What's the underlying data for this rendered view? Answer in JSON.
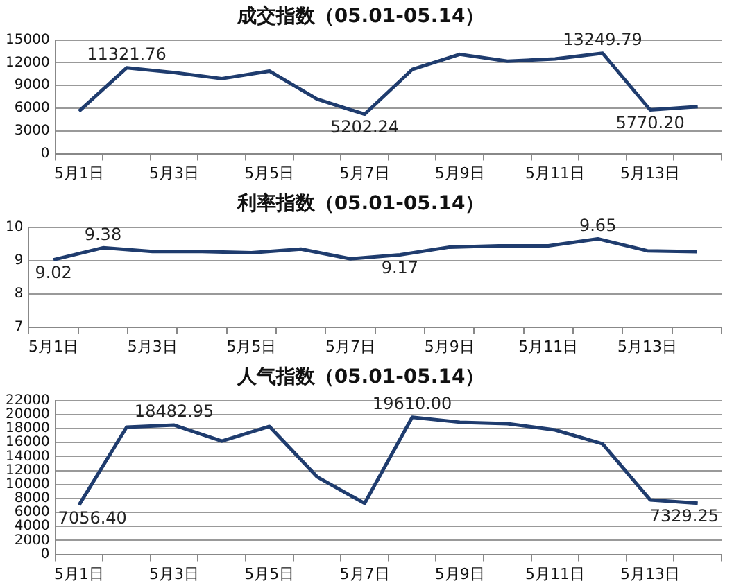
{
  "chart_data": [
    {
      "type": "line",
      "title": "成交指数（05.01-05.14）",
      "categories": [
        "5月1日",
        null,
        "5月3日",
        null,
        "5月5日",
        null,
        "5月7日",
        null,
        "5月9日",
        null,
        "5月11日",
        null,
        "5月13日",
        null
      ],
      "ylim": [
        0,
        15000
      ],
      "yticks": [
        0,
        3000,
        6000,
        9000,
        12000,
        15000
      ],
      "grid": "y",
      "series": [
        {
          "color": "#1f3c6e",
          "values": [
            5600,
            11321.76,
            10700,
            9900,
            10900,
            7200,
            5202.24,
            11100,
            13100,
            12200,
            12500,
            13249.79,
            5770.2,
            6200
          ],
          "value_labels": [
            null,
            "11321.76",
            null,
            null,
            null,
            null,
            "5202.24",
            null,
            null,
            null,
            null,
            "13249.79",
            "5770.20",
            null
          ]
        }
      ]
    },
    {
      "type": "line",
      "title": "利率指数（05.01-05.14）",
      "categories": [
        "5月1日",
        null,
        "5月3日",
        null,
        "5月5日",
        null,
        "5月7日",
        null,
        "5月9日",
        null,
        "5月11日",
        null,
        "5月13日",
        null
      ],
      "ylim": [
        7,
        10
      ],
      "yticks": [
        7,
        8,
        9,
        10
      ],
      "grid": "y",
      "series": [
        {
          "color": "#1f3c6e",
          "values": [
            9.02,
            9.38,
            9.27,
            9.27,
            9.23,
            9.34,
            9.05,
            9.17,
            9.4,
            9.44,
            9.44,
            9.65,
            9.29,
            9.26
          ],
          "value_labels": [
            "9.02",
            "9.38",
            null,
            null,
            null,
            null,
            null,
            "9.17",
            null,
            null,
            null,
            "9.65",
            null,
            null
          ]
        }
      ]
    },
    {
      "type": "line",
      "title": "人气指数（05.01-05.14）",
      "categories": [
        "5月1日",
        null,
        "5月3日",
        null,
        "5月5日",
        null,
        "5月7日",
        null,
        "5月9日",
        null,
        "5月11日",
        null,
        "5月13日",
        null
      ],
      "ylim": [
        0,
        22000
      ],
      "yticks": [
        0,
        2000,
        4000,
        6000,
        8000,
        10000,
        12000,
        14000,
        16000,
        18000,
        20000,
        22000
      ],
      "grid": "y",
      "series": [
        {
          "color": "#1f3c6e",
          "values": [
            7056.4,
            18200,
            18482.95,
            16200,
            18300,
            11100,
            7300,
            19610.0,
            18900,
            18700,
            17800,
            15800,
            7800,
            7329.25
          ],
          "value_labels": [
            "7056.40",
            null,
            "18482.95",
            null,
            null,
            null,
            null,
            "19610.00",
            null,
            null,
            null,
            null,
            null,
            "7329.25"
          ]
        }
      ]
    }
  ]
}
